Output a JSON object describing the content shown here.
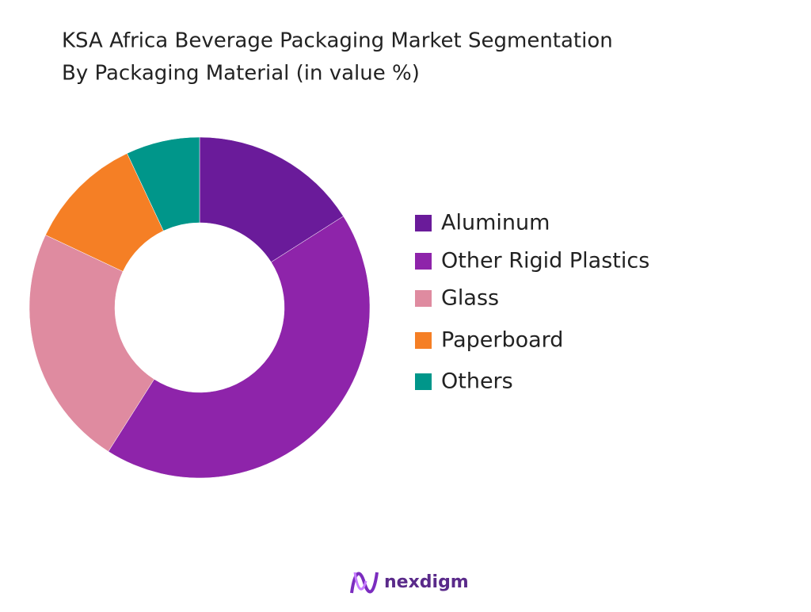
{
  "chart_data": {
    "type": "donut",
    "title": [
      "KSA Africa Beverage Packaging Market Segmentation",
      "By Packaging Material (in value %)"
    ],
    "categories": [
      "Aluminum",
      "Other Rigid Plastics",
      "Glass",
      "Paperboard",
      "Others"
    ],
    "values": [
      16,
      43,
      23,
      11,
      7
    ],
    "colors": [
      "#6a1b9a",
      "#8e24aa",
      "#df8ba0",
      "#f57f25",
      "#00968a"
    ],
    "legend": "right"
  },
  "brand": "nexdigm"
}
